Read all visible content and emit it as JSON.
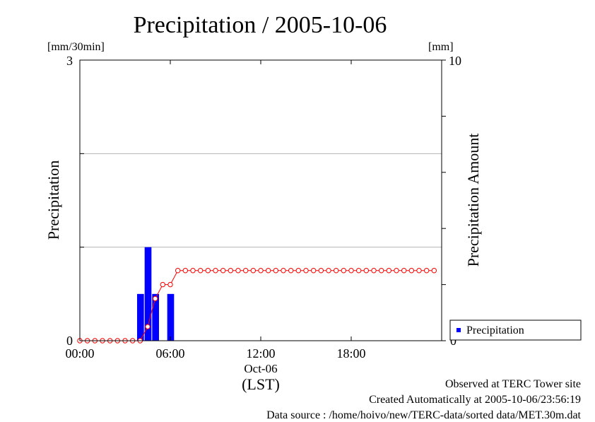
{
  "chart_data": {
    "type": "bar",
    "title": "Precipitation / 2005-10-06",
    "left_unit": "[mm/30min]",
    "right_unit": "[mm]",
    "ylabel_left": "Precipitation",
    "ylabel_right": "Precipitation Amount",
    "ylim_left": [
      0,
      3
    ],
    "ylim_right": [
      0,
      10
    ],
    "y_ticks_left": [
      "0",
      "3"
    ],
    "y_ticks_right": [
      "0",
      "10"
    ],
    "x_ticks": [
      "00:00",
      "06:00",
      "12:00",
      "18:00"
    ],
    "x_date_label": "Oct-06",
    "x_zone_label": "(LST)",
    "grid": true,
    "legend": {
      "position": "bottom-right",
      "entries": [
        "Precipitation"
      ]
    },
    "colors": {
      "bars": "#0000ff",
      "cumulative": "#ff0000",
      "grid": "#b4b4b4"
    },
    "time_step_hours": 0.5,
    "series": [
      {
        "name": "Precipitation",
        "axis": "left",
        "style": "bar",
        "values": [
          0,
          0,
          0,
          0,
          0,
          0,
          0,
          0,
          0.5,
          1.0,
          0.5,
          0,
          0.5,
          0,
          0,
          0,
          0,
          0,
          0,
          0,
          0,
          0,
          0,
          0,
          0,
          0,
          0,
          0,
          0,
          0,
          0,
          0,
          0,
          0,
          0,
          0,
          0,
          0,
          0,
          0,
          0,
          0,
          0,
          0,
          0,
          0,
          0,
          0
        ]
      },
      {
        "axis": "right",
        "style": "line-marker",
        "values": [
          0,
          0,
          0,
          0,
          0,
          0,
          0,
          0,
          0,
          0.5,
          1.5,
          2.0,
          2.0,
          2.5,
          2.5,
          2.5,
          2.5,
          2.5,
          2.5,
          2.5,
          2.5,
          2.5,
          2.5,
          2.5,
          2.5,
          2.5,
          2.5,
          2.5,
          2.5,
          2.5,
          2.5,
          2.5,
          2.5,
          2.5,
          2.5,
          2.5,
          2.5,
          2.5,
          2.5,
          2.5,
          2.5,
          2.5,
          2.5,
          2.5,
          2.5,
          2.5,
          2.5,
          2.5
        ]
      }
    ]
  },
  "footer": {
    "site": "Observed at TERC Tower site",
    "created": "Created Automatically at 2005-10-06/23:56:19",
    "source": "Data source : /home/hoivo/new/TERC-data/sorted  data/MET.30m.dat"
  }
}
